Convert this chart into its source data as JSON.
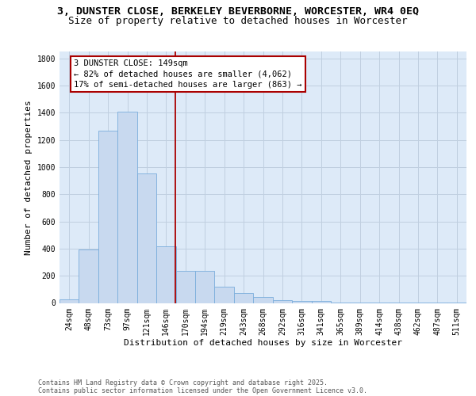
{
  "title_line1": "3, DUNSTER CLOSE, BERKELEY BEVERBORNE, WORCESTER, WR4 0EQ",
  "title_line2": "Size of property relative to detached houses in Worcester",
  "xlabel": "Distribution of detached houses by size in Worcester",
  "ylabel": "Number of detached properties",
  "categories": [
    "24sqm",
    "48sqm",
    "73sqm",
    "97sqm",
    "121sqm",
    "146sqm",
    "170sqm",
    "194sqm",
    "219sqm",
    "243sqm",
    "268sqm",
    "292sqm",
    "316sqm",
    "341sqm",
    "365sqm",
    "389sqm",
    "414sqm",
    "438sqm",
    "462sqm",
    "487sqm",
    "511sqm"
  ],
  "values": [
    25,
    395,
    1265,
    1410,
    955,
    415,
    235,
    235,
    120,
    70,
    45,
    20,
    15,
    15,
    5,
    5,
    5,
    5,
    5,
    5,
    5
  ],
  "bar_color": "#c8d9ef",
  "bar_edge_color": "#7aaddc",
  "vline_position": 5.47,
  "vline_color": "#aa0000",
  "annotation_text": "3 DUNSTER CLOSE: 149sqm\n← 82% of detached houses are smaller (4,062)\n17% of semi-detached houses are larger (863) →",
  "annotation_box_facecolor": "#ffffff",
  "annotation_box_edgecolor": "#aa0000",
  "ylim": [
    0,
    1850
  ],
  "yticks": [
    0,
    200,
    400,
    600,
    800,
    1000,
    1200,
    1400,
    1600,
    1800
  ],
  "plot_bg_color": "#ddeaf8",
  "footer_line1": "Contains HM Land Registry data © Crown copyright and database right 2025.",
  "footer_line2": "Contains public sector information licensed under the Open Government Licence v3.0.",
  "title1_fontsize": 9.5,
  "title2_fontsize": 9.0,
  "axis_label_fontsize": 8.0,
  "tick_fontsize": 7.0,
  "annotation_fontsize": 7.5,
  "footer_fontsize": 6.0
}
